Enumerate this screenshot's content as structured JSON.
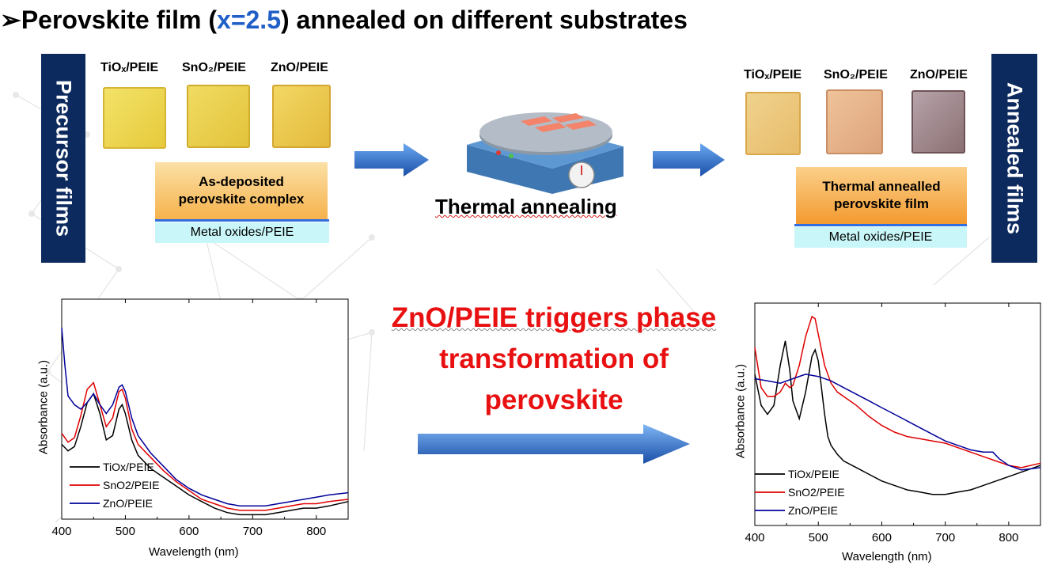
{
  "slide": {
    "title_bullet": "➢",
    "title_before": "Perovskite film (",
    "title_highlight": "x=2.5",
    "title_after": ") annealed on different substrates"
  },
  "precursor": {
    "bar_label": "Precursor films",
    "substrates": [
      "TiOₓ/PEIE",
      "SnO₂/PEIE",
      "ZnO/PEIE"
    ],
    "layer_top": "As-deposited perovskite complex",
    "layer_bottom": "Metal oxides/PEIE"
  },
  "process": {
    "label": "Thermal annealing"
  },
  "annealed": {
    "bar_label": "Annealed films",
    "substrates": [
      "TiOₓ/PEIE",
      "SnO₂/PEIE",
      "ZnO/PEIE"
    ],
    "layer_top": "Thermal annealled perovskite film",
    "layer_bottom": "Metal oxides/PEIE"
  },
  "caption": {
    "line1": "ZnO/PEIE triggers phase",
    "line2": "transformation of",
    "line3": "perovskite",
    "color": "#e81010"
  },
  "chart_data": [
    {
      "type": "line",
      "xlabel": "Wavelength (nm)",
      "ylabel": "Absorbance (a.u.)",
      "xlim": [
        400,
        850
      ],
      "ylim": [
        0,
        1
      ],
      "xticks": [
        400,
        500,
        600,
        700,
        800
      ],
      "legend_position": "bottom-left",
      "series": [
        {
          "name": "TiOx/PEIE",
          "color": "#000000",
          "x": [
            400,
            410,
            420,
            430,
            440,
            450,
            460,
            470,
            480,
            490,
            495,
            500,
            510,
            520,
            540,
            560,
            580,
            600,
            620,
            640,
            660,
            680,
            700,
            720,
            740,
            760,
            780,
            800,
            820,
            850
          ],
          "y": [
            0.34,
            0.31,
            0.33,
            0.42,
            0.53,
            0.57,
            0.48,
            0.36,
            0.38,
            0.5,
            0.52,
            0.48,
            0.36,
            0.29,
            0.23,
            0.19,
            0.15,
            0.11,
            0.08,
            0.05,
            0.03,
            0.02,
            0.02,
            0.02,
            0.03,
            0.04,
            0.05,
            0.05,
            0.06,
            0.08
          ]
        },
        {
          "name": "SnO2/PEIE",
          "color": "#e00000",
          "x": [
            400,
            410,
            420,
            430,
            440,
            450,
            460,
            470,
            480,
            490,
            495,
            500,
            510,
            520,
            540,
            560,
            580,
            600,
            620,
            640,
            660,
            680,
            700,
            720,
            740,
            760,
            780,
            800,
            820,
            850
          ],
          "y": [
            0.39,
            0.35,
            0.37,
            0.47,
            0.59,
            0.62,
            0.52,
            0.42,
            0.46,
            0.58,
            0.59,
            0.55,
            0.41,
            0.34,
            0.28,
            0.22,
            0.17,
            0.13,
            0.09,
            0.07,
            0.05,
            0.04,
            0.04,
            0.04,
            0.05,
            0.06,
            0.07,
            0.07,
            0.08,
            0.09
          ]
        },
        {
          "name": "ZnO/PEIE",
          "color": "#000099",
          "x": [
            400,
            405,
            410,
            420,
            430,
            440,
            450,
            460,
            470,
            480,
            490,
            495,
            500,
            510,
            520,
            540,
            560,
            580,
            600,
            620,
            640,
            660,
            680,
            700,
            720,
            740,
            760,
            780,
            800,
            820,
            850
          ],
          "y": [
            0.87,
            0.7,
            0.56,
            0.52,
            0.5,
            0.53,
            0.57,
            0.52,
            0.48,
            0.52,
            0.6,
            0.61,
            0.58,
            0.46,
            0.38,
            0.3,
            0.24,
            0.18,
            0.14,
            0.11,
            0.09,
            0.07,
            0.06,
            0.06,
            0.06,
            0.07,
            0.08,
            0.09,
            0.1,
            0.11,
            0.12
          ]
        }
      ]
    },
    {
      "type": "line",
      "xlabel": "Wavelength (nm)",
      "ylabel": "Absorbance (a.u.)",
      "xlim": [
        400,
        850
      ],
      "ylim": [
        0,
        1
      ],
      "xticks": [
        400,
        500,
        600,
        700,
        800
      ],
      "legend_position": "bottom-left",
      "series": [
        {
          "name": "TiOx/PEIE",
          "color": "#000000",
          "x": [
            400,
            410,
            420,
            430,
            440,
            448,
            455,
            460,
            470,
            480,
            490,
            495,
            500,
            510,
            515,
            520,
            530,
            540,
            560,
            580,
            600,
            620,
            640,
            660,
            680,
            700,
            720,
            740,
            760,
            780,
            800,
            820,
            850
          ],
          "y": [
            0.68,
            0.54,
            0.5,
            0.54,
            0.72,
            0.83,
            0.7,
            0.56,
            0.48,
            0.6,
            0.76,
            0.79,
            0.74,
            0.5,
            0.4,
            0.36,
            0.32,
            0.29,
            0.26,
            0.23,
            0.2,
            0.18,
            0.16,
            0.15,
            0.14,
            0.14,
            0.15,
            0.16,
            0.18,
            0.2,
            0.22,
            0.24,
            0.27
          ]
        },
        {
          "name": "SnO2/PEIE",
          "color": "#e00000",
          "x": [
            400,
            410,
            420,
            430,
            440,
            448,
            455,
            460,
            470,
            480,
            490,
            495,
            500,
            510,
            520,
            530,
            540,
            560,
            580,
            600,
            620,
            640,
            660,
            680,
            700,
            720,
            740,
            760,
            780,
            800,
            820,
            850
          ],
          "y": [
            0.8,
            0.62,
            0.58,
            0.58,
            0.6,
            0.64,
            0.62,
            0.63,
            0.72,
            0.85,
            0.94,
            0.93,
            0.86,
            0.72,
            0.64,
            0.6,
            0.58,
            0.54,
            0.49,
            0.45,
            0.42,
            0.4,
            0.39,
            0.38,
            0.37,
            0.35,
            0.33,
            0.31,
            0.29,
            0.27,
            0.26,
            0.28
          ]
        },
        {
          "name": "ZnO/PEIE",
          "color": "#000099",
          "x": [
            400,
            420,
            440,
            460,
            480,
            500,
            520,
            540,
            560,
            580,
            600,
            620,
            640,
            660,
            680,
            700,
            720,
            740,
            760,
            775,
            785,
            800,
            820,
            850
          ],
          "y": [
            0.66,
            0.65,
            0.64,
            0.66,
            0.68,
            0.67,
            0.65,
            0.62,
            0.59,
            0.56,
            0.53,
            0.5,
            0.47,
            0.44,
            0.41,
            0.38,
            0.36,
            0.34,
            0.33,
            0.33,
            0.3,
            0.27,
            0.25,
            0.26
          ]
        }
      ]
    }
  ]
}
